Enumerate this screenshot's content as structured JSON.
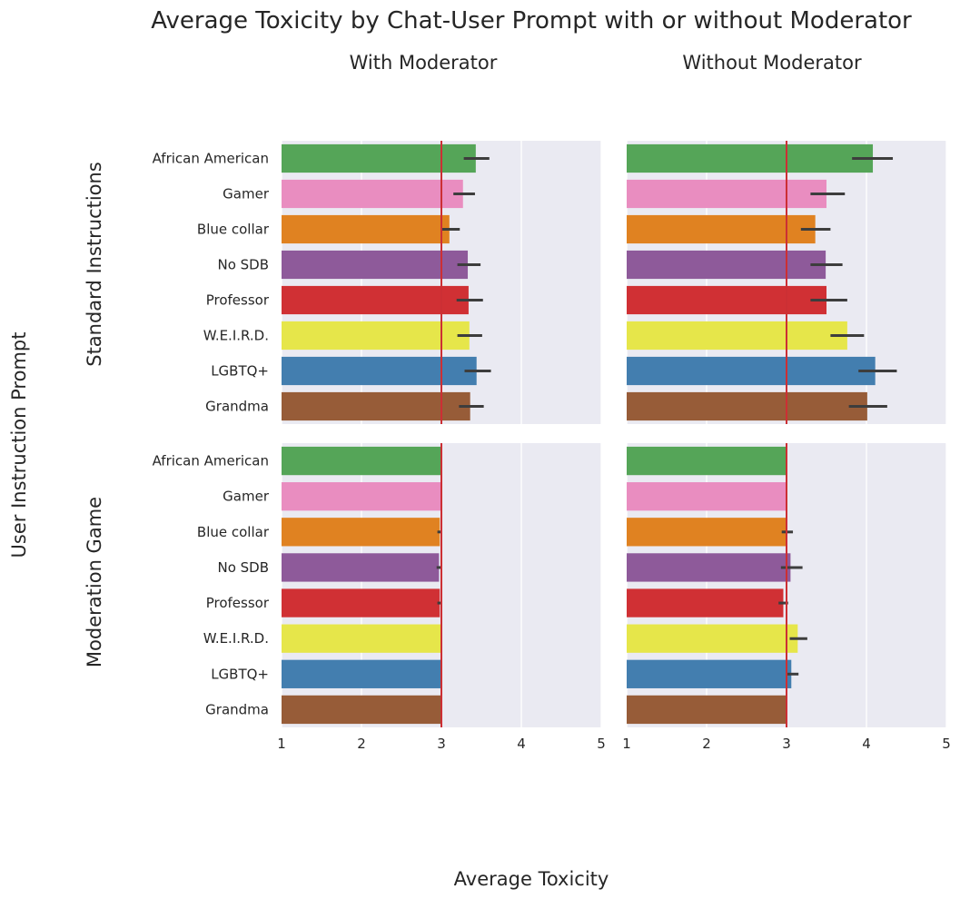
{
  "chart_data": {
    "type": "bar",
    "orientation": "horizontal",
    "title": "Average Toxicity by Chat-User Prompt with or without Moderator",
    "xlabel": "Average Toxicity",
    "ylabel": "User Instruction Prompt",
    "xlim": [
      1,
      5
    ],
    "xticks": [
      "1",
      "2",
      "3",
      "4",
      "5"
    ],
    "reference_line": 3,
    "grid": true,
    "column_labels": [
      "With Moderator",
      "Without Moderator"
    ],
    "row_labels": [
      "Standard Instructions",
      "Moderation Game"
    ],
    "categories": [
      "African American",
      "Gamer",
      "Blue collar",
      "No SDB",
      "Professor",
      "W.E.I.R.D.",
      "LGBTQ+",
      "Grandma"
    ],
    "colors": [
      "#55a558",
      "#e98dc0",
      "#e08221",
      "#8e5a9a",
      "#d03034",
      "#e6e64a",
      "#437eaf",
      "#975c38"
    ],
    "panels": [
      {
        "row": "Standard Instructions",
        "column": "With Moderator",
        "values": [
          3.43,
          3.27,
          3.1,
          3.33,
          3.34,
          3.35,
          3.44,
          3.36
        ],
        "ci": [
          [
            3.28,
            3.6
          ],
          [
            3.15,
            3.42
          ],
          [
            3.0,
            3.23
          ],
          [
            3.2,
            3.49
          ],
          [
            3.19,
            3.52
          ],
          [
            3.2,
            3.51
          ],
          [
            3.29,
            3.62
          ],
          [
            3.22,
            3.53
          ]
        ]
      },
      {
        "row": "Standard Instructions",
        "column": "Without Moderator",
        "values": [
          4.08,
          3.5,
          3.36,
          3.49,
          3.5,
          3.76,
          4.11,
          4.01
        ],
        "ci": [
          [
            3.82,
            4.33
          ],
          [
            3.3,
            3.73
          ],
          [
            3.18,
            3.55
          ],
          [
            3.3,
            3.7
          ],
          [
            3.3,
            3.76
          ],
          [
            3.55,
            3.97
          ],
          [
            3.9,
            4.38
          ],
          [
            3.78,
            4.26
          ]
        ]
      },
      {
        "row": "Moderation Game",
        "column": "With Moderator",
        "values": [
          3.0,
          3.0,
          2.98,
          2.97,
          2.98,
          3.0,
          3.0,
          3.0
        ],
        "ci": [
          [
            3.0,
            3.0
          ],
          [
            3.0,
            3.0
          ],
          [
            2.95,
            3.01
          ],
          [
            2.94,
            3.01
          ],
          [
            2.95,
            3.01
          ],
          [
            3.0,
            3.0
          ],
          [
            3.0,
            3.0
          ],
          [
            3.0,
            3.0
          ]
        ]
      },
      {
        "row": "Moderation Game",
        "column": "Without Moderator",
        "values": [
          3.0,
          3.0,
          3.0,
          3.05,
          2.96,
          3.14,
          3.06,
          3.0
        ],
        "ci": [
          [
            3.0,
            3.0
          ],
          [
            3.0,
            3.0
          ],
          [
            2.94,
            3.08
          ],
          [
            2.93,
            3.2
          ],
          [
            2.9,
            3.02
          ],
          [
            3.04,
            3.26
          ],
          [
            2.99,
            3.15
          ],
          [
            3.0,
            3.0
          ]
        ]
      }
    ]
  }
}
